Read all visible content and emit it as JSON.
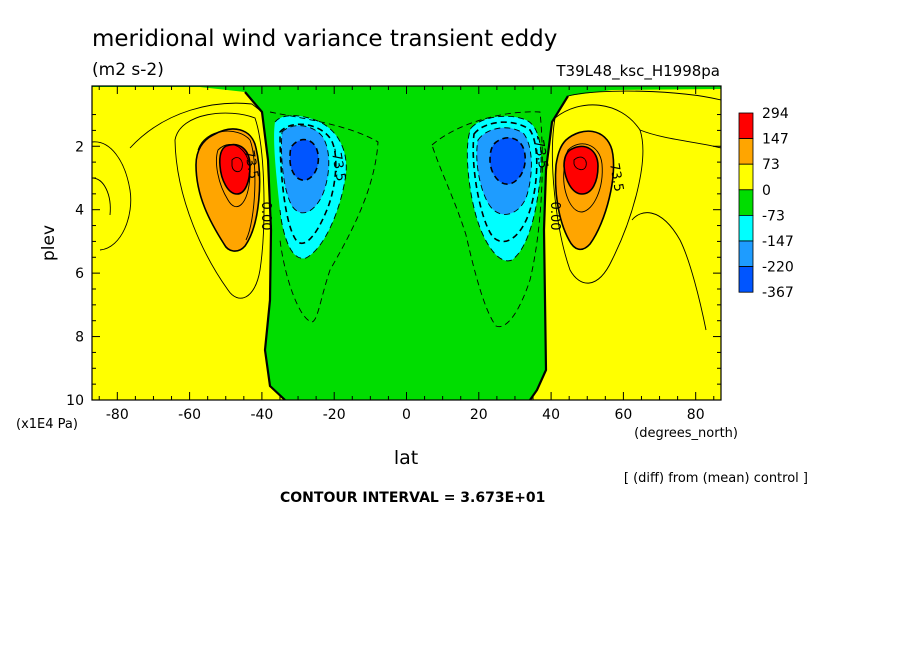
{
  "chart_data": {
    "type": "heatmap",
    "title": "meridional wind variance transient eddy",
    "units": "(m2 s-2)",
    "experiment": "T39L48_ksc_H1998pa",
    "xlabel": "lat",
    "x_unit": "(degrees_north)",
    "ylabel": "plev",
    "y_unit": "(x1E4 Pa)",
    "xlim": [
      -87,
      87
    ],
    "ylim": [
      0.1,
      10
    ],
    "y_inverted": true,
    "x_ticks": [
      "-80",
      "-60",
      "-40",
      "-20",
      "0",
      "20",
      "40",
      "60",
      "80"
    ],
    "x_tick_values": [
      -80,
      -60,
      -40,
      -20,
      0,
      20,
      40,
      60,
      80
    ],
    "y_ticks": [
      "2",
      "4",
      "6",
      "8",
      "10"
    ],
    "y_tick_values": [
      2,
      4,
      6,
      8,
      10
    ],
    "note": "[ (diff) from (mean) control ]",
    "contour_interval": "CONTOUR INTERVAL = 3.673E+01",
    "contour_labels": [
      {
        "text": "73.5",
        "lat": -44,
        "plev": 2.6,
        "rotate": 80
      },
      {
        "text": "0.00",
        "lat": -40,
        "plev": 4.2,
        "rotate": 90
      },
      {
        "text": "-73.5",
        "lat": -20,
        "plev": 2.6,
        "rotate": 80
      },
      {
        "text": "-73.5",
        "lat": 36,
        "plev": 2.2,
        "rotate": 80
      },
      {
        "text": "0.00",
        "lat": 40,
        "plev": 4.2,
        "rotate": 90
      },
      {
        "text": "73.5",
        "lat": 57,
        "plev": 3.0,
        "rotate": 80
      }
    ],
    "legend": {
      "placement": "right",
      "levels": [
        "294",
        "147",
        "73",
        "0",
        "-73",
        "-147",
        "-220",
        "-367"
      ],
      "colors": [
        "#ff0000",
        "#ffa500",
        "#ffff00",
        "#00dd00",
        "#00ffff",
        "#1e9cff",
        "#0055ff"
      ]
    },
    "features": [
      {
        "kind": "max",
        "lat": -48,
        "plev": 2.6,
        "value_range": "147 to 294"
      },
      {
        "kind": "min",
        "lat": -30,
        "plev": 2.4,
        "value_range": "-220 to -367"
      },
      {
        "kind": "min",
        "lat": 29,
        "plev": 2.4,
        "value_range": "-220 to -367"
      },
      {
        "kind": "max",
        "lat": 48,
        "plev": 2.6,
        "value_range": "147 to 294"
      }
    ]
  }
}
